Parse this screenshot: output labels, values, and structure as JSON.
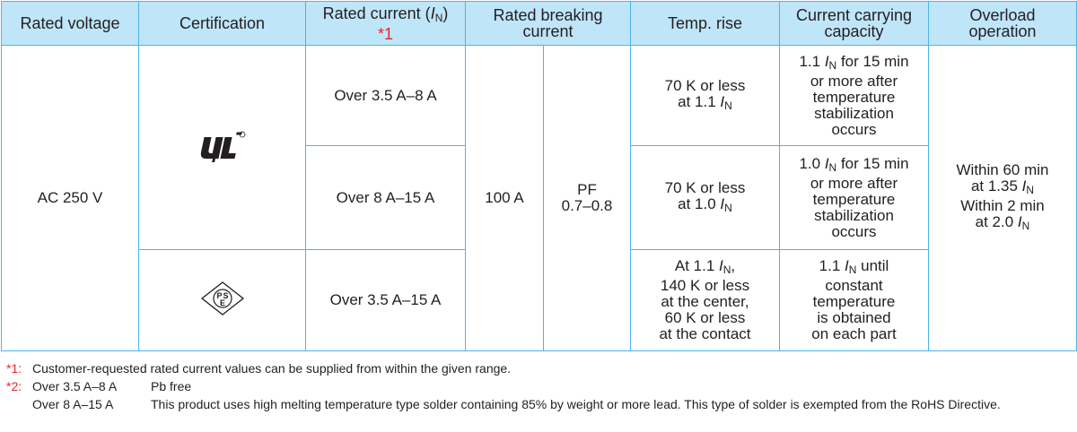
{
  "headers": {
    "rated_voltage": "Rated voltage",
    "certification": "Certification",
    "rated_current_prefix": "Rated current (",
    "rated_current_symbol": "I",
    "rated_current_sub": "N",
    "rated_current_suffix": ")",
    "rated_current_note": "*1",
    "rated_breaking_current": "Rated breaking current",
    "temp_rise": "Temp. rise",
    "current_carrying_capacity": "Current carrying capacity",
    "overload_operation": "Overload operation"
  },
  "shared": {
    "rated_voltage": "AC 250 V",
    "breaking_current": "100 A",
    "pf_label": "PF",
    "pf_range": "0.7–0.8",
    "overload": {
      "l1": "Within 60 min",
      "l2_pre": "at 1.35 ",
      "l3": "Within 2 min",
      "l4_pre": "at 2.0 "
    }
  },
  "certifications": [
    {
      "icon": "ul-recognized-mark-icon"
    },
    {
      "icon": "pse-mark-icon",
      "text": "PSE"
    }
  ],
  "rows": [
    {
      "rated_current": "Over 3.5 A–8 A",
      "temp_rise": {
        "l1": "70 K or less",
        "l2_pre": "at 1.1 "
      },
      "capacity": {
        "l1_pre": "1.1 ",
        "l1_post": " for 15 min",
        "l2": "or more after",
        "l3": "temperature",
        "l4": "stabilization",
        "l5": "occurs"
      }
    },
    {
      "rated_current": "Over 8 A–15 A",
      "temp_rise": {
        "l1": "70 K or less",
        "l2_pre": "at 1.0 "
      },
      "capacity": {
        "l1_pre": "1.0 ",
        "l1_post": " for 15 min",
        "l2": "or more after",
        "l3": "temperature",
        "l4": "stabilization",
        "l5": "occurs"
      }
    },
    {
      "rated_current": "Over 3.5 A–15 A",
      "temp_rise": {
        "l1_pre": "At 1.1 ",
        "l1_post": ",",
        "l2": "140 K or less",
        "l3": "at the center,",
        "l4": "60 K or less",
        "l5": "at the contact"
      },
      "capacity": {
        "l1_pre": "1.1 ",
        "l1_post": " until",
        "l2": "constant",
        "l3": "temperature",
        "l4": "is obtained",
        "l5": "on each part"
      }
    }
  ],
  "notes": {
    "n1_mark": "*1:",
    "n1_text": "Customer-requested rated current values can be supplied from within the given range.",
    "n2_mark": "*2:",
    "n2_range_a": "Over 3.5 A–8 A",
    "n2_text_a": "Pb free",
    "n2_range_b": "Over 8 A–15 A",
    "n2_text_b": "This product uses high melting temperature type solder containing 85% by weight or more lead. This type of solder is exempted from the RoHS Directive."
  },
  "colors": {
    "header_bg": "#bfe5f8",
    "border": "#4fb3e8",
    "note_red": "#e4262c"
  }
}
